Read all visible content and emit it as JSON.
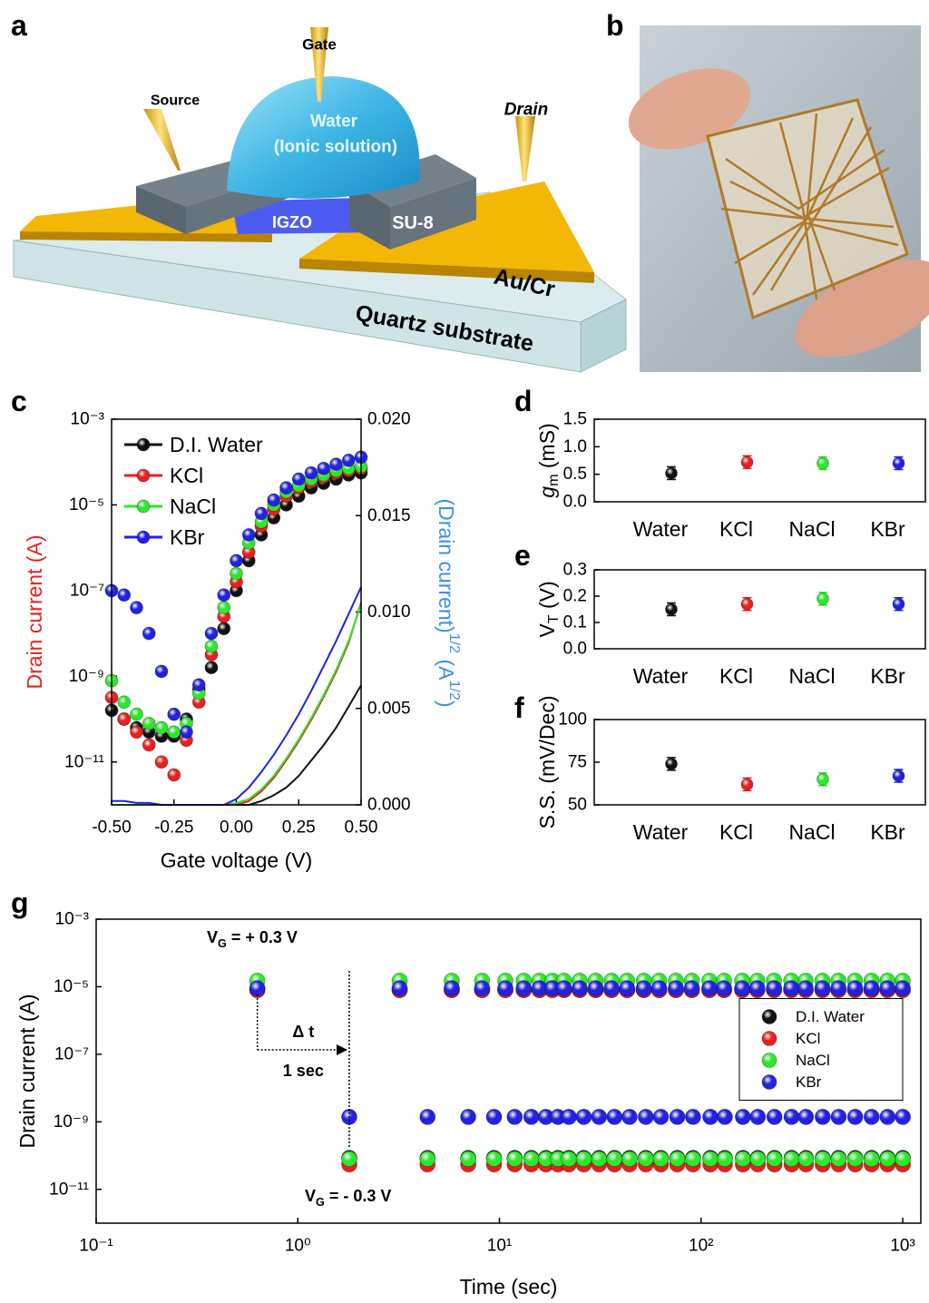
{
  "illustration": {
    "panel": "a",
    "labels": {
      "source": "Source",
      "gate": "Gate",
      "drain": "Drain",
      "water": "Water",
      "solution": "(Ionic solution)",
      "igzo": "IGZO",
      "su8": "SU-8",
      "electrode": "Au/Cr",
      "substrate": "Quartz substrate"
    }
  },
  "photo": {
    "panel": "b"
  },
  "chart_data": [
    {
      "panel": "c",
      "type": "scatter",
      "log_y": true,
      "x": [
        -0.5,
        -0.45,
        -0.4,
        -0.35,
        -0.3,
        -0.25,
        -0.2,
        -0.15,
        -0.1,
        -0.05,
        0,
        0.05,
        0.1,
        0.15,
        0.2,
        0.25,
        0.3,
        0.35,
        0.4,
        0.45,
        0.5
      ],
      "xlim": [
        -0.5,
        0.5
      ],
      "xticks": [
        {
          "value": -0.5,
          "label": "-0.50"
        },
        {
          "value": -0.25,
          "label": "-0.25"
        },
        {
          "value": 0,
          "label": "0.00"
        },
        0.25,
        {
          "value": 0.5,
          "label": "0.50"
        }
      ],
      "ylim": [
        1e-12,
        0.001
      ],
      "yticks": [
        {
          "value": 0.001,
          "label": "10⁻³"
        },
        {
          "value": 1e-05,
          "label": "10⁻⁵"
        },
        {
          "value": 1e-07,
          "label": "10⁻⁷"
        },
        {
          "value": 1e-09,
          "label": "10⁻⁹"
        },
        {
          "value": 1e-11,
          "label": "10⁻¹¹"
        }
      ],
      "y2lim": [
        0,
        0.02
      ],
      "y2ticks": [
        {
          "value": 0,
          "label": "0.000"
        },
        0.005,
        {
          "value": 0.01,
          "label": "0.010"
        },
        0.015,
        {
          "value": 0.02,
          "label": "0.020"
        }
      ],
      "xlabel": "Gate voltage (V)",
      "ylabel": "Drain current (A)",
      "ylabel_color": "#e62020",
      "y2label": [
        {
          "text": "(Drain current)"
        },
        {
          "text": "1/2",
          "sup": true
        },
        {
          "text": "  (A"
        },
        {
          "text": "1/2",
          "sup": true
        },
        {
          "text": ")"
        }
      ],
      "y2label_color": "#3d8fe0",
      "legend": "upper left",
      "series": [
        {
          "name": "D.I. Water",
          "color": "#111111",
          "values": [
            1.6e-10,
            1e-10,
            6.3e-11,
            5e-11,
            4e-11,
            4e-11,
            1e-10,
            5e-10,
            1.6e-09,
            1.3e-08,
            1e-07,
            5e-07,
            2e-06,
            5e-06,
            1e-05,
            1.6e-05,
            2.5e-05,
            3.2e-05,
            4e-05,
            5e-05,
            5.6e-05
          ]
        },
        {
          "name": "KCl",
          "color": "#e8201e",
          "values": [
            3.2e-10,
            1e-10,
            5e-11,
            2.5e-11,
            1e-11,
            5e-12,
            3.2e-11,
            2.5e-10,
            3.2e-09,
            2.5e-08,
            1.6e-07,
            7.9e-07,
            3.2e-06,
            7.9e-06,
            1.6e-05,
            2.5e-05,
            3.5e-05,
            4.5e-05,
            5.6e-05,
            6.3e-05,
            7.1e-05
          ]
        },
        {
          "name": "NaCl",
          "color": "#2ee62e",
          "values": [
            7.9e-10,
            2.5e-10,
            1.3e-10,
            7.9e-11,
            6.3e-11,
            5e-11,
            7.9e-11,
            4e-10,
            5e-09,
            4e-08,
            2.5e-07,
            1.3e-06,
            4e-06,
            1e-05,
            2e-05,
            2.8e-05,
            4e-05,
            5e-05,
            6.3e-05,
            7.1e-05,
            7.9e-05
          ]
        },
        {
          "name": "KBr",
          "color": "#2222e0",
          "values": [
            1e-07,
            7.9e-08,
            4e-08,
            1e-08,
            1.3e-09,
            1.3e-10,
            5e-11,
            6.3e-10,
            1e-08,
            7.9e-08,
            5e-07,
            2e-06,
            6.3e-06,
            1.3e-05,
            2.5e-05,
            4e-05,
            5.6e-05,
            7.1e-05,
            8.9e-05,
            0.00011,
            0.00013
          ]
        }
      ],
      "y2_series": [
        {
          "color": "#111111",
          "axis": "y2",
          "values": [
            0,
            0,
            0,
            0,
            0,
            0,
            0,
            0,
            0,
            0,
            0,
            0,
            0.0002,
            0.0005,
            0.0009,
            0.0015,
            0.0023,
            0.0031,
            0.004,
            0.0051,
            0.0062
          ]
        },
        {
          "color": "#e8201e",
          "axis": "y2",
          "values": [
            0,
            0,
            0,
            0,
            0,
            0,
            0,
            0,
            0,
            0,
            0,
            0.0002,
            0.0007,
            0.0014,
            0.0023,
            0.0033,
            0.0044,
            0.0056,
            0.0069,
            0.0084,
            0.0105
          ]
        },
        {
          "color": "#2ee62e",
          "axis": "y2",
          "values": [
            0,
            0,
            0,
            0,
            0,
            0,
            0,
            0,
            0,
            0,
            0.0001,
            0.0003,
            0.0008,
            0.0015,
            0.0024,
            0.0034,
            0.0045,
            0.0057,
            0.007,
            0.0085,
            0.0104
          ]
        },
        {
          "color": "#2222e0",
          "axis": "y2",
          "values": [
            0.0002,
            0.0002,
            0.0001,
            0.0001,
            0,
            0,
            0,
            0,
            0,
            0,
            0.0003,
            0.0009,
            0.0017,
            0.0026,
            0.0036,
            0.0047,
            0.0059,
            0.0072,
            0.0085,
            0.0099,
            0.0113
          ]
        }
      ]
    },
    {
      "panel": "d",
      "type": "dot",
      "categories": [
        "Water",
        "KCl",
        "NaCl",
        "KBr"
      ],
      "values": [
        0.52,
        0.72,
        0.7,
        0.7
      ],
      "colors": [
        "#111111",
        "#e8201e",
        "#2ee62e",
        "#2222e0"
      ],
      "ylim": [
        0,
        1.5
      ],
      "yticks": [
        {
          "value": 0,
          "label": "0.0"
        },
        0.5,
        {
          "value": 1,
          "label": "1.0"
        },
        1.5
      ],
      "ylabel": [
        {
          "text": "g",
          "italic": true
        },
        {
          "text": "m",
          "sub": true
        },
        {
          "text": " (mS)"
        }
      ]
    },
    {
      "panel": "e",
      "type": "dot",
      "categories": [
        "Water",
        "KCl",
        "NaCl",
        "KBr"
      ],
      "values": [
        0.15,
        0.17,
        0.19,
        0.17
      ],
      "colors": [
        "#111111",
        "#e8201e",
        "#2ee62e",
        "#2222e0"
      ],
      "ylim": [
        0,
        0.3
      ],
      "yticks": [
        {
          "value": 0,
          "label": "0.0"
        },
        0.1,
        0.2,
        0.3
      ],
      "ylabel": [
        {
          "text": "V"
        },
        {
          "text": "T",
          "sub": true
        },
        {
          "text": " (V)"
        }
      ]
    },
    {
      "panel": "f",
      "type": "dot",
      "categories": [
        "Water",
        "KCl",
        "NaCl",
        "KBr"
      ],
      "values": [
        74,
        62,
        65,
        67
      ],
      "colors": [
        "#111111",
        "#e8201e",
        "#2ee62e",
        "#2222e0"
      ],
      "ylim": [
        50,
        100
      ],
      "yticks": [
        50,
        75,
        100
      ],
      "ylabel": "S.S. (mV/Dec)"
    },
    {
      "panel": "g",
      "type": "scatter",
      "log_x": true,
      "log_y": true,
      "x": [
        0.63,
        1.8,
        3.2,
        4.4,
        5.8,
        7.0,
        8.2,
        9.4,
        10.7,
        11.9,
        13.2,
        14.4,
        15.8,
        17.0,
        18.3,
        19.5,
        20.9,
        22.1,
        25,
        26.2,
        30,
        31.2,
        36,
        37.2,
        43,
        44.2,
        52,
        53.2,
        62,
        63.2,
        75,
        76.2,
        90,
        91.2,
        110,
        111.2,
        130,
        131.2,
        160,
        161.2,
        190,
        191.2,
        230,
        231.2,
        280,
        281.2,
        330,
        331.2,
        400,
        401.2,
        480,
        481.2,
        580,
        581.2,
        700,
        701.2,
        840,
        841.2,
        1000,
        1001.2
      ],
      "xlim": [
        0.1,
        1230
      ],
      "xticks": [
        {
          "value": 0.1,
          "label": "10⁻¹"
        },
        {
          "value": 1,
          "label": "10⁰"
        },
        {
          "value": 10,
          "label": "10¹"
        },
        {
          "value": 100,
          "label": "10²"
        },
        {
          "value": 1000,
          "label": "10³"
        }
      ],
      "ylim": [
        1e-12,
        0.001
      ],
      "yticks": [
        {
          "value": 0.001,
          "label": "10⁻³"
        },
        {
          "value": 1e-05,
          "label": "10⁻⁵"
        },
        {
          "value": 1e-07,
          "label": "10⁻⁷"
        },
        {
          "value": 1e-09,
          "label": "10⁻⁹"
        },
        {
          "value": 1e-11,
          "label": "10⁻¹¹"
        }
      ],
      "xlabel": "Time (sec)",
      "ylabel": "Drain current (A)",
      "legend": "center right",
      "legend_frame": true,
      "annotations": [
        [
          {
            "text": "V"
          },
          {
            "text": "G",
            "sub": true
          },
          {
            "text": " = + 0.3 V"
          }
        ],
        "Δ t",
        "1 sec",
        [
          {
            "text": "V"
          },
          {
            "text": "G",
            "sub": true
          },
          {
            "text": " = - 0.3 V"
          }
        ]
      ],
      "series": [
        {
          "name": "D.I. Water",
          "color": "#111111",
          "values": [
            8e-06,
            8.5e-11,
            8e-06,
            8.5e-11,
            8e-06,
            8.5e-11,
            8e-06,
            8.5e-11,
            8e-06,
            8.5e-11,
            8e-06,
            8.5e-11,
            8e-06,
            8.5e-11,
            8e-06,
            8.5e-11,
            8e-06,
            8.5e-11,
            8e-06,
            8.5e-11,
            8e-06,
            8.5e-11,
            8e-06,
            8.5e-11,
            8e-06,
            8.5e-11,
            8e-06,
            8.5e-11,
            8e-06,
            8.5e-11,
            8e-06,
            8.5e-11,
            8e-06,
            8.5e-11,
            8e-06,
            8.5e-11,
            8e-06,
            8.5e-11,
            8e-06,
            8.5e-11,
            8e-06,
            8.5e-11,
            8e-06,
            8.5e-11,
            8e-06,
            8.5e-11,
            8e-06,
            8.5e-11,
            8e-06,
            8.5e-11,
            8e-06,
            8.5e-11,
            8e-06,
            8.5e-11,
            8e-06,
            8.5e-11,
            8e-06,
            8.5e-11,
            8e-06,
            8.5e-11
          ]
        },
        {
          "name": "KCl",
          "color": "#e8201e",
          "values": [
            8e-06,
            5.5e-11,
            8e-06,
            5.5e-11,
            8e-06,
            5.5e-11,
            8e-06,
            5.5e-11,
            8e-06,
            5.5e-11,
            8e-06,
            5.5e-11,
            8e-06,
            5.5e-11,
            8e-06,
            5.5e-11,
            8e-06,
            5.5e-11,
            8e-06,
            5.5e-11,
            8e-06,
            5.5e-11,
            8e-06,
            5.5e-11,
            8e-06,
            5.5e-11,
            8e-06,
            5.5e-11,
            8e-06,
            5.5e-11,
            8e-06,
            5.5e-11,
            8e-06,
            5.5e-11,
            8e-06,
            5.5e-11,
            8e-06,
            5.5e-11,
            8e-06,
            5.5e-11,
            8e-06,
            5.5e-11,
            8e-06,
            5.5e-11,
            8e-06,
            5.5e-11,
            8e-06,
            5.5e-11,
            8e-06,
            5.5e-11,
            8e-06,
            5.5e-11,
            8e-06,
            5.5e-11,
            8e-06,
            5.5e-11,
            8e-06,
            5.5e-11,
            8e-06,
            5.5e-11
          ]
        },
        {
          "name": "NaCl",
          "color": "#2ee62e",
          "values": [
            1.5e-05,
            8e-11,
            1.5e-05,
            8e-11,
            1.5e-05,
            8e-11,
            1.5e-05,
            8e-11,
            1.5e-05,
            8e-11,
            1.5e-05,
            8e-11,
            1.5e-05,
            8e-11,
            1.5e-05,
            8e-11,
            1.5e-05,
            8e-11,
            1.5e-05,
            8e-11,
            1.5e-05,
            8e-11,
            1.5e-05,
            8e-11,
            1.5e-05,
            8e-11,
            1.5e-05,
            8e-11,
            1.5e-05,
            8e-11,
            1.5e-05,
            8e-11,
            1.5e-05,
            8e-11,
            1.5e-05,
            8e-11,
            1.5e-05,
            8e-11,
            1.5e-05,
            8e-11,
            1.5e-05,
            8e-11,
            1.5e-05,
            8e-11,
            1.5e-05,
            8e-11,
            1.5e-05,
            8e-11,
            1.5e-05,
            8e-11,
            1.5e-05,
            8e-11,
            1.5e-05,
            8e-11,
            1.5e-05,
            8e-11,
            1.5e-05,
            8e-11,
            1.5e-05,
            8e-11
          ]
        },
        {
          "name": "KBr",
          "color": "#2222e0",
          "values": [
            9e-06,
            1.4e-09,
            9e-06,
            1.4e-09,
            9e-06,
            1.4e-09,
            9e-06,
            1.4e-09,
            9e-06,
            1.4e-09,
            9e-06,
            1.4e-09,
            9e-06,
            1.4e-09,
            9e-06,
            1.4e-09,
            9e-06,
            1.4e-09,
            9e-06,
            1.4e-09,
            9e-06,
            1.4e-09,
            9e-06,
            1.4e-09,
            9e-06,
            1.4e-09,
            9e-06,
            1.4e-09,
            9e-06,
            1.4e-09,
            9e-06,
            1.4e-09,
            9e-06,
            1.4e-09,
            9e-06,
            1.4e-09,
            9e-06,
            1.4e-09,
            9e-06,
            1.4e-09,
            9e-06,
            1.4e-09,
            9e-06,
            1.4e-09,
            9e-06,
            1.4e-09,
            9e-06,
            1.4e-09,
            9e-06,
            1.4e-09,
            9e-06,
            1.4e-09,
            9e-06,
            1.4e-09,
            9e-06,
            1.4e-09,
            9e-06,
            1.4e-09,
            9e-06,
            1.4e-09
          ]
        }
      ]
    }
  ]
}
